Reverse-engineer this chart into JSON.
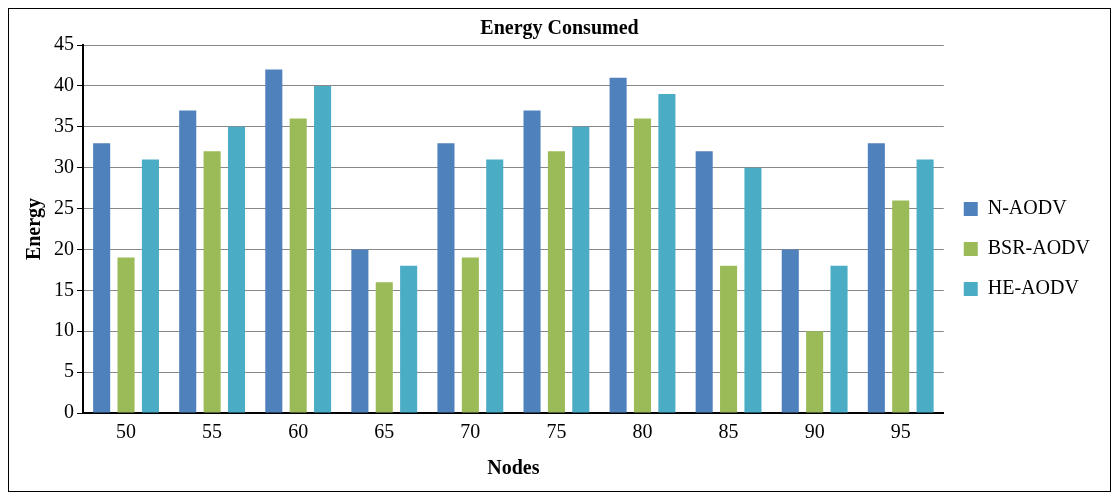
{
  "chart_data": {
    "type": "bar",
    "title": "Energy Consumed",
    "xlabel": "Nodes",
    "ylabel": "Energy",
    "categories": [
      "50",
      "55",
      "60",
      "65",
      "70",
      "75",
      "80",
      "85",
      "90",
      "95"
    ],
    "series": [
      {
        "name": "N-AODV",
        "color": "#4f81bd",
        "values": [
          33,
          37,
          42,
          20,
          33,
          37,
          41,
          32,
          20,
          33
        ]
      },
      {
        "name": "BSR-AODV",
        "color": "#9bbb59",
        "values": [
          19,
          32,
          36,
          16,
          19,
          32,
          36,
          18,
          10,
          26
        ]
      },
      {
        "name": "HE-AODV",
        "color": "#4bacc6",
        "values": [
          31,
          35,
          40,
          18,
          31,
          35,
          39,
          30,
          18,
          31
        ]
      }
    ],
    "ylim": [
      0,
      45
    ],
    "yticks": [
      0,
      5,
      10,
      15,
      20,
      25,
      30,
      35,
      40,
      45
    ],
    "grid": "y",
    "legend": "right"
  }
}
